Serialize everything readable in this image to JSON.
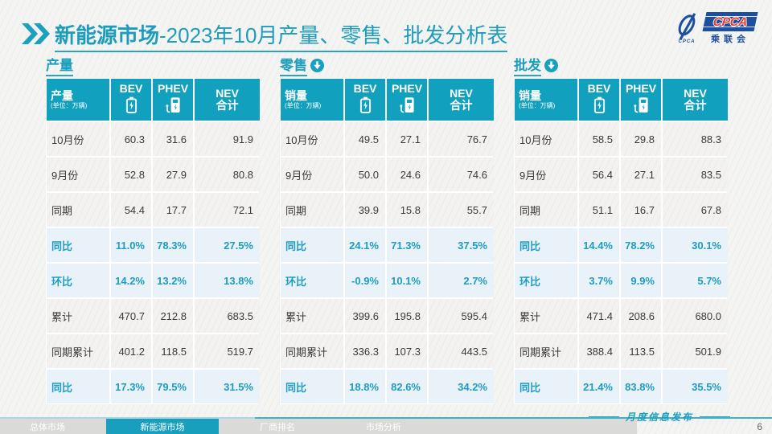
{
  "header": {
    "title_bold": "新能源市场",
    "title_rest": "-2023年10月产量、零售、批发分析表",
    "logo": {
      "acronym": "CPCA",
      "cn": "乘联会",
      "small": "CPCA"
    }
  },
  "watermark_text": "CPCA",
  "chart_data": [
    {
      "type": "table",
      "title": "产量",
      "arrow": false,
      "header": {
        "label": "产量",
        "unit": "(单位：万辆)",
        "col_bev": "BEV",
        "col_phev": "PHEV",
        "col_nev_line1": "NEV",
        "col_nev_line2": "合计"
      },
      "rows": [
        {
          "label": "10月份",
          "values": [
            "60.3",
            "31.6",
            "91.9"
          ],
          "highlight": false
        },
        {
          "label": "9月份",
          "values": [
            "52.8",
            "27.9",
            "80.8"
          ],
          "highlight": false
        },
        {
          "label": "同期",
          "values": [
            "54.4",
            "17.7",
            "72.1"
          ],
          "highlight": false
        },
        {
          "label": "同比",
          "values": [
            "11.0%",
            "78.3%",
            "27.5%"
          ],
          "highlight": true
        },
        {
          "label": "环比",
          "values": [
            "14.2%",
            "13.2%",
            "13.8%"
          ],
          "highlight": true
        },
        {
          "label": "累计",
          "values": [
            "470.7",
            "212.8",
            "683.5"
          ],
          "highlight": false
        },
        {
          "label": "同期累计",
          "values": [
            "401.2",
            "118.5",
            "519.7"
          ],
          "highlight": false
        },
        {
          "label": "同比",
          "values": [
            "17.3%",
            "79.5%",
            "31.5%"
          ],
          "highlight": true
        }
      ]
    },
    {
      "type": "table",
      "title": "零售",
      "arrow": true,
      "header": {
        "label": "销量",
        "unit": "(单位：万辆)",
        "col_bev": "BEV",
        "col_phev": "PHEV",
        "col_nev_line1": "NEV",
        "col_nev_line2": "合计"
      },
      "rows": [
        {
          "label": "10月份",
          "values": [
            "49.5",
            "27.1",
            "76.7"
          ],
          "highlight": false
        },
        {
          "label": "9月份",
          "values": [
            "50.0",
            "24.6",
            "74.6"
          ],
          "highlight": false
        },
        {
          "label": "同期",
          "values": [
            "39.9",
            "15.8",
            "55.7"
          ],
          "highlight": false
        },
        {
          "label": "同比",
          "values": [
            "24.1%",
            "71.3%",
            "37.5%"
          ],
          "highlight": true
        },
        {
          "label": "环比",
          "values": [
            "-0.9%",
            "10.1%",
            "2.7%"
          ],
          "highlight": true
        },
        {
          "label": "累计",
          "values": [
            "399.6",
            "195.8",
            "595.4"
          ],
          "highlight": false
        },
        {
          "label": "同期累计",
          "values": [
            "336.3",
            "107.3",
            "443.5"
          ],
          "highlight": false
        },
        {
          "label": "同比",
          "values": [
            "18.8%",
            "82.6%",
            "34.2%"
          ],
          "highlight": true
        }
      ]
    },
    {
      "type": "table",
      "title": "批发",
      "arrow": true,
      "header": {
        "label": "销量",
        "unit": "(单位：万辆)",
        "col_bev": "BEV",
        "col_phev": "PHEV",
        "col_nev_line1": "NEV",
        "col_nev_line2": "合计"
      },
      "rows": [
        {
          "label": "10月份",
          "values": [
            "58.5",
            "29.8",
            "88.3"
          ],
          "highlight": false
        },
        {
          "label": "9月份",
          "values": [
            "56.4",
            "27.1",
            "83.5"
          ],
          "highlight": false
        },
        {
          "label": "同期",
          "values": [
            "51.1",
            "16.7",
            "67.8"
          ],
          "highlight": false
        },
        {
          "label": "同比",
          "values": [
            "14.4%",
            "78.2%",
            "30.1%"
          ],
          "highlight": true
        },
        {
          "label": "环比",
          "values": [
            "3.7%",
            "9.9%",
            "5.7%"
          ],
          "highlight": true
        },
        {
          "label": "累计",
          "values": [
            "471.4",
            "208.6",
            "680.0"
          ],
          "highlight": false
        },
        {
          "label": "同期累计",
          "values": [
            "388.4",
            "113.5",
            "501.9"
          ],
          "highlight": false
        },
        {
          "label": "同比",
          "values": [
            "21.4%",
            "83.8%",
            "35.5%"
          ],
          "highlight": true
        }
      ]
    }
  ],
  "footer": {
    "tabs": [
      {
        "label": "总体市场",
        "active": false
      },
      {
        "label": "新能源市场",
        "active": true
      },
      {
        "label": "厂商排名",
        "active": false
      },
      {
        "label": "市场分析",
        "active": false
      }
    ],
    "script_text": "月度信息发布",
    "page_number": "6"
  },
  "colors": {
    "accent": "#17a0bf",
    "highlight_row_bg": "#e8f2f8",
    "logo_blue": "#1d4fa1",
    "logo_red": "#e8382d"
  }
}
